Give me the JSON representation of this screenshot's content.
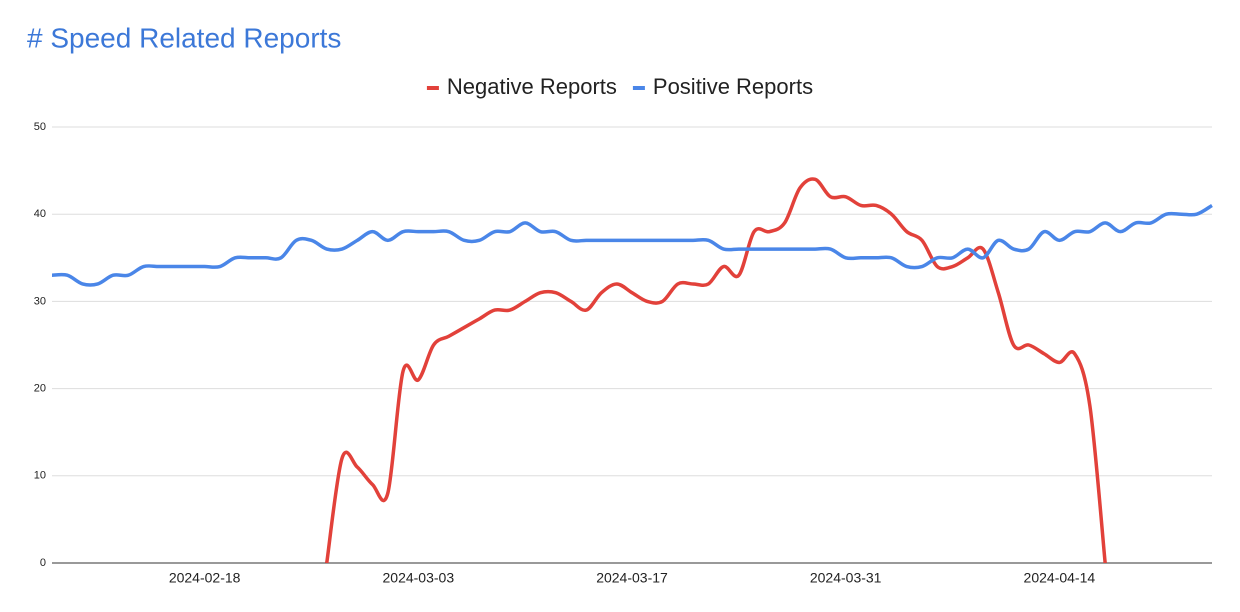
{
  "chart_data": {
    "type": "line",
    "title": "# Speed Related Reports",
    "x": [
      "2024-02-08",
      "2024-02-09",
      "2024-02-10",
      "2024-02-11",
      "2024-02-12",
      "2024-02-13",
      "2024-02-14",
      "2024-02-15",
      "2024-02-16",
      "2024-02-17",
      "2024-02-18",
      "2024-02-19",
      "2024-02-20",
      "2024-02-21",
      "2024-02-22",
      "2024-02-23",
      "2024-02-24",
      "2024-02-25",
      "2024-02-26",
      "2024-02-27",
      "2024-02-28",
      "2024-02-29",
      "2024-03-01",
      "2024-03-02",
      "2024-03-03",
      "2024-03-04",
      "2024-03-05",
      "2024-03-06",
      "2024-03-07",
      "2024-03-08",
      "2024-03-09",
      "2024-03-10",
      "2024-03-11",
      "2024-03-12",
      "2024-03-13",
      "2024-03-14",
      "2024-03-15",
      "2024-03-16",
      "2024-03-17",
      "2024-03-18",
      "2024-03-19",
      "2024-03-20",
      "2024-03-21",
      "2024-03-22",
      "2024-03-23",
      "2024-03-24",
      "2024-03-25",
      "2024-03-26",
      "2024-03-27",
      "2024-03-28",
      "2024-03-29",
      "2024-03-30",
      "2024-03-31",
      "2024-04-01",
      "2024-04-02",
      "2024-04-03",
      "2024-04-04",
      "2024-04-05",
      "2024-04-06",
      "2024-04-07",
      "2024-04-08",
      "2024-04-09",
      "2024-04-10",
      "2024-04-11",
      "2024-04-12",
      "2024-04-13",
      "2024-04-14",
      "2024-04-15",
      "2024-04-16",
      "2024-04-17",
      "2024-04-18",
      "2024-04-19",
      "2024-04-20",
      "2024-04-21",
      "2024-04-22",
      "2024-04-23",
      "2024-04-24"
    ],
    "series": [
      {
        "name": "Negative Reports",
        "color": "#e2413a",
        "values": [
          null,
          null,
          null,
          null,
          null,
          null,
          null,
          null,
          null,
          null,
          null,
          null,
          null,
          null,
          null,
          null,
          null,
          null,
          0,
          12,
          11,
          9,
          8,
          22,
          21,
          25,
          26,
          27,
          28,
          29,
          29,
          30,
          31,
          31,
          30,
          29,
          31,
          32,
          31,
          30,
          30,
          32,
          32,
          32,
          34,
          33,
          38,
          38,
          39,
          43,
          44,
          42,
          42,
          41,
          41,
          40,
          38,
          37,
          34,
          34,
          35,
          36,
          31,
          25,
          25,
          24,
          23,
          24,
          18,
          0,
          null,
          null,
          null,
          null,
          null,
          null,
          null
        ]
      },
      {
        "name": "Positive Reports",
        "color": "#4a86e8",
        "values": [
          33,
          33,
          32,
          32,
          33,
          33,
          34,
          34,
          34,
          34,
          34,
          34,
          35,
          35,
          35,
          35,
          37,
          37,
          36,
          36,
          37,
          38,
          37,
          38,
          38,
          38,
          38,
          37,
          37,
          38,
          38,
          39,
          38,
          38,
          37,
          37,
          37,
          37,
          37,
          37,
          37,
          37,
          37,
          37,
          36,
          36,
          36,
          36,
          36,
          36,
          36,
          36,
          35,
          35,
          35,
          35,
          34,
          34,
          35,
          35,
          36,
          35,
          37,
          36,
          36,
          38,
          37,
          38,
          38,
          39,
          38,
          39,
          39,
          40,
          40,
          40,
          41
        ]
      }
    ],
    "xlim": [
      "2024-02-08",
      "2024-04-24"
    ],
    "xticks": [
      "2024-02-18",
      "2024-03-03",
      "2024-03-17",
      "2024-03-31",
      "2024-04-14"
    ],
    "ylim": [
      0,
      50
    ],
    "yticks": [
      0,
      10,
      20,
      30,
      40,
      50
    ],
    "grid": true,
    "legend": "top"
  }
}
